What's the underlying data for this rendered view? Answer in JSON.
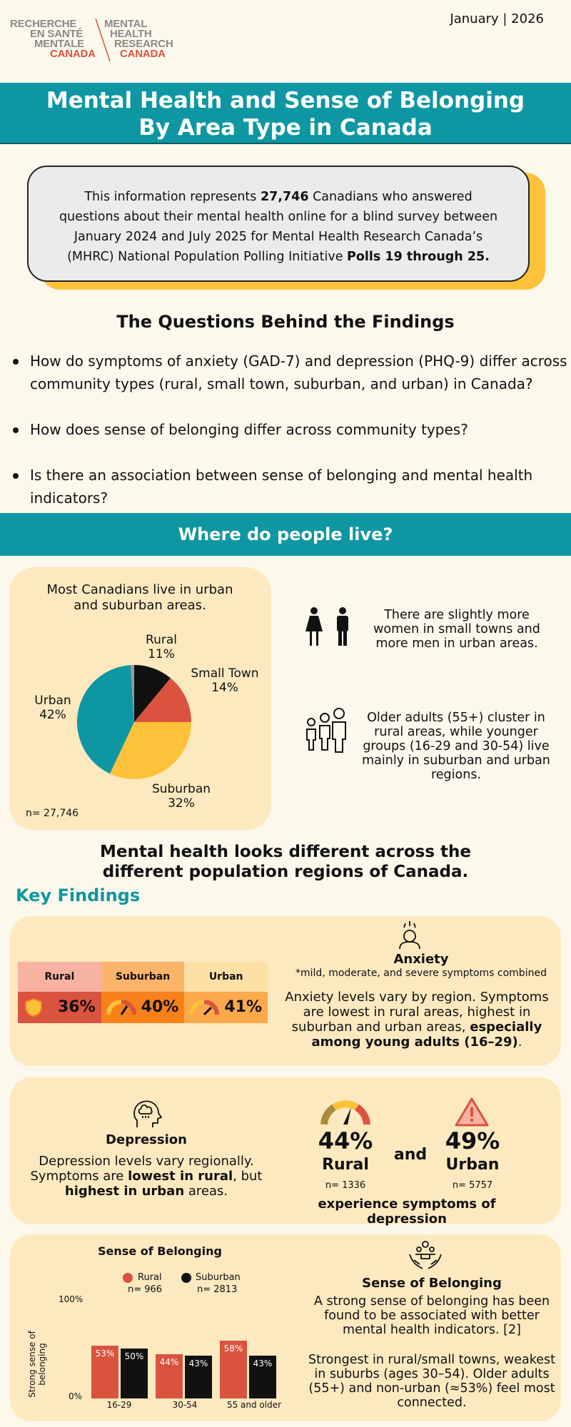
{
  "header": {
    "logo_lines_left": [
      "RECHERCHE",
      "EN SANTÉ",
      "MENTALE",
      "CANADA"
    ],
    "logo_lines_right": [
      "MENTAL",
      "HEALTH",
      "RESEARCH",
      "CANADA"
    ],
    "date": "January | 2026"
  },
  "title": {
    "line1": "Mental Health and Sense of Belonging",
    "line2": "By Area Type in Canada"
  },
  "intro": {
    "part1": "This information represents ",
    "count": "27,746",
    "part2": " Canadians who answered questions about their mental health online for a blind survey between January 2024 and July 2025 for Mental Health Research Canada’s (MHRC) National Population Polling Initiative ",
    "polls": "Polls 19 through 25."
  },
  "questions": {
    "heading": "The Questions Behind the Findings",
    "items": [
      "How do symptoms of anxiety (GAD-7) and depression (PHQ-9) differ across community types (rural, small town, suburban, and urban) in Canada?",
      "How does sense of belonging differ across community types?",
      "Is there an association between sense of belonging and mental health indicators?"
    ]
  },
  "where": {
    "heading": "Where do people live?",
    "pie_title": "Most Canadians live in urban and suburban areas.",
    "n_label": "n= 27,746",
    "gender_text": "There are slightly more women in small towns and more men in urban areas.",
    "age_text": "Older adults (55+) cluster in rural areas, while younger groups (16-29 and 30-54) live mainly in suburban and urban regions."
  },
  "chart_data": [
    {
      "type": "pie",
      "title": "Most Canadians live in urban and suburban areas.",
      "slices": [
        {
          "label": "Rural",
          "value": 11,
          "display": "11%",
          "color": "#111111"
        },
        {
          "label": "Small Town",
          "value": 14,
          "display": "14%",
          "color": "#d9533f"
        },
        {
          "label": "Suburban",
          "value": 32,
          "display": "32%",
          "color": "#fdc13a"
        },
        {
          "label": "Urban",
          "value": 42,
          "display": "42%",
          "color": "#0e97a3"
        },
        {
          "label": "",
          "value": 1,
          "display": "",
          "color": "#9a9a9a"
        }
      ]
    },
    {
      "type": "bar",
      "title": "Sense of Belonging",
      "ylabel": "Strong sense of belonging",
      "ylim": [
        0,
        100
      ],
      "yticks": [
        "100%",
        "0%"
      ],
      "categories": [
        "16-29",
        "30-54",
        "55 and older"
      ],
      "series": [
        {
          "name": "Rural",
          "n": "n= 966",
          "color": "#d9533f",
          "values": [
            53,
            44,
            58
          ],
          "labels": [
            "53%",
            "44%",
            "58%"
          ]
        },
        {
          "name": "Suburban",
          "n": "n= 2813",
          "color": "#111111",
          "values": [
            50,
            43,
            43
          ],
          "labels": [
            "50%",
            "43%",
            "43%"
          ]
        }
      ]
    }
  ],
  "mh_heading": "Mental health looks different across the different population regions of Canada.",
  "key_findings": "Key Findings",
  "anxiety": {
    "table": [
      {
        "region": "Rural",
        "value": "36%",
        "head_color": "#f8b2a2",
        "val_color": "#d9533f"
      },
      {
        "region": "Suburban",
        "value": "40%",
        "head_color": "#fbb46a",
        "val_color": "#f6811b"
      },
      {
        "region": "Urban",
        "value": "41%",
        "head_color": "#fde0a6",
        "val_color": "#fba94b"
      }
    ],
    "title": "Anxiety",
    "note": "*mild, moderate, and severe symptoms combined",
    "text1": "Anxiety levels vary by region. Symptoms are lowest in rural areas, highest in suburban and urban areas, ",
    "text_bold": "especially among young adults (16–29)",
    "text2": "."
  },
  "depression": {
    "title": "Depression",
    "t1": "Depression levels vary regionally. Symptoms are ",
    "b1": "lowest in rural",
    "t2": ", but ",
    "b2": "highest in urban",
    "t3": " areas.",
    "rural_pct": "44%",
    "rural_label": "Rural",
    "rural_n": "n= 1336",
    "and": "and",
    "urban_pct": "49%",
    "urban_label": "Urban",
    "urban_n": "n= 5757",
    "caption": "experience symptoms of depression"
  },
  "belonging": {
    "title": "Sense of Belonging",
    "text1": "A strong sense of belonging has been found to be associated with better mental health indicators. [2]",
    "text2": "Strongest in rural/small towns, weakest in suburbs (ages 30–54). Older adults (55+) and non-urban (≈53%) feel most connected."
  }
}
